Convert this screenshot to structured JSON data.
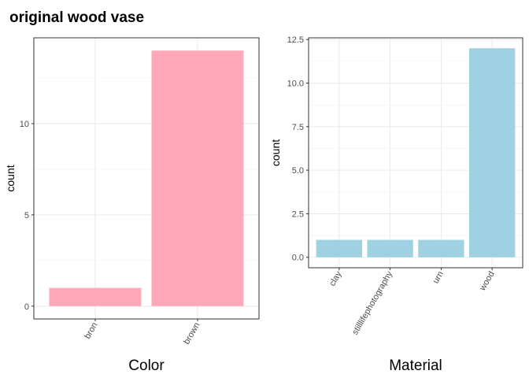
{
  "title": "original wood vase",
  "chart_data": [
    {
      "type": "bar",
      "xlabel": "Color",
      "ylabel": "count",
      "categories": [
        "bron",
        "brown"
      ],
      "values": [
        1,
        14
      ],
      "ylim": [
        -0.7,
        14.7
      ],
      "yticks": [
        0,
        5,
        10
      ],
      "ytick_labels": [
        "0",
        "5",
        "10"
      ],
      "bar_color": "#FFA8B9",
      "grid": true
    },
    {
      "type": "bar",
      "xlabel": "Material",
      "ylabel": "count",
      "categories": [
        "clay",
        "stilllifephotography",
        "urn",
        "wood"
      ],
      "values": [
        1,
        1,
        1,
        12
      ],
      "ylim": [
        -0.6,
        12.6
      ],
      "yticks": [
        0,
        2.5,
        5,
        7.5,
        10,
        12.5
      ],
      "ytick_labels": [
        "0.0",
        "2.5",
        "5.0",
        "7.5",
        "10.0",
        "12.5"
      ],
      "bar_color": "#9FD1E2",
      "grid": true
    }
  ]
}
